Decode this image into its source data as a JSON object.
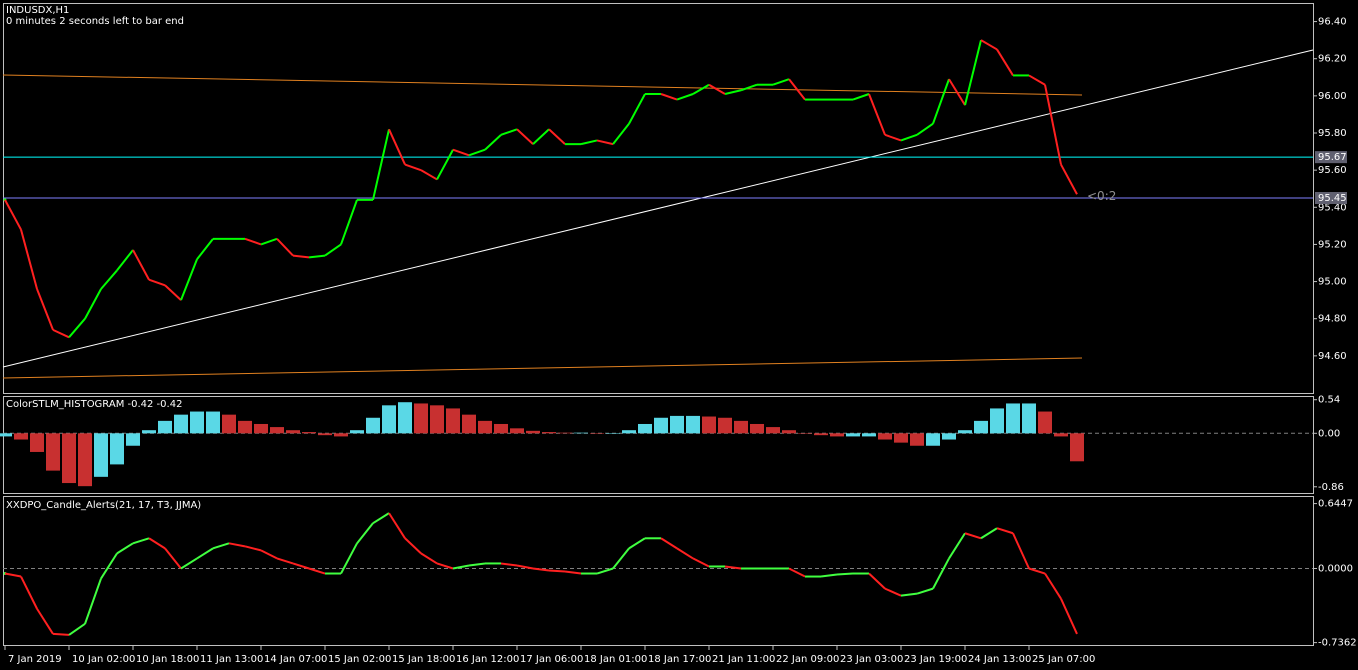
{
  "chart_data": [
    {
      "type": "line",
      "title": "INDUSDX,H1",
      "subtitle": "0 minutes 2 seconds left to bar end",
      "values": [
        95.44,
        95.28,
        94.96,
        94.74,
        94.7,
        94.8,
        94.96,
        95.06,
        95.17,
        95.01,
        94.98,
        94.9,
        95.12,
        95.23,
        95.23,
        95.23,
        95.2,
        95.23,
        95.14,
        95.13,
        95.14,
        95.2,
        95.44,
        95.44,
        95.82,
        95.63,
        95.6,
        95.55,
        95.71,
        95.68,
        95.71,
        95.79,
        95.82,
        95.74,
        95.82,
        95.74,
        95.74,
        95.76,
        95.74,
        95.85,
        96.01,
        96.01,
        95.98,
        96.01,
        96.06,
        96.01,
        96.03,
        96.06,
        96.06,
        96.09,
        95.98,
        95.98,
        95.98,
        95.98,
        96.01,
        95.79,
        95.76,
        95.79,
        95.85,
        96.09,
        95.95,
        96.3,
        96.25,
        96.11,
        96.11,
        96.06,
        95.63,
        95.47
      ],
      "up_color": "#00ff00",
      "down_color": "#ff2020",
      "ylim": [
        94.4,
        96.5
      ],
      "yticks": [
        {
          "value": 94.6,
          "label": "94.60"
        },
        {
          "value": 94.8,
          "label": "94.80"
        },
        {
          "value": 95.0,
          "label": "95.00"
        },
        {
          "value": 95.2,
          "label": "95.20"
        },
        {
          "value": 95.4,
          "label": "95.40"
        },
        {
          "value": 95.6,
          "label": "95.60"
        },
        {
          "value": 95.8,
          "label": "95.80"
        },
        {
          "value": 96.0,
          "label": "96.00"
        },
        {
          "value": 96.2,
          "label": "96.20"
        },
        {
          "value": 96.4,
          "label": "96.40"
        }
      ],
      "price_lines": [
        95.67,
        95.45
      ],
      "price_line_colors": [
        "#00ffff",
        "#8080ff"
      ],
      "annotation": "<0:2"
    },
    {
      "type": "histogram",
      "title": "ColorSTLM_HISTOGRAM -0.42 -0.42",
      "values": [
        -0.05,
        -0.1,
        -0.3,
        -0.6,
        -0.8,
        -0.85,
        -0.7,
        -0.5,
        -0.2,
        0.05,
        0.2,
        0.3,
        0.35,
        0.35,
        0.3,
        0.2,
        0.15,
        0.1,
        0.05,
        0.02,
        -0.03,
        -0.05,
        0.05,
        0.25,
        0.45,
        0.5,
        0.48,
        0.45,
        0.4,
        0.3,
        0.2,
        0.15,
        0.08,
        0.04,
        0.02,
        0.01,
        0.01,
        0.0,
        0.0,
        0.05,
        0.15,
        0.25,
        0.28,
        0.28,
        0.27,
        0.25,
        0.2,
        0.15,
        0.1,
        0.05,
        0.0,
        -0.03,
        -0.05,
        -0.05,
        -0.05,
        -0.1,
        -0.15,
        -0.2,
        -0.2,
        -0.1,
        0.05,
        0.2,
        0.4,
        0.48,
        0.48,
        0.35,
        -0.05,
        -0.45
      ],
      "up_color": "#5ad8e6",
      "down_color": "#c83030",
      "ylim": [
        -0.96,
        0.6
      ],
      "yticks": [
        -0.86,
        {
          "value": 0,
          "label": "0.00"
        },
        0.54
      ],
      "zero_line": true
    },
    {
      "type": "line",
      "title": "XXDPO_Candle_Alerts(21, 17, T3, JJMA)",
      "categories": [
        "7 Jan 2019",
        null,
        null,
        null,
        "10 Jan 02:00",
        null,
        null,
        null,
        "10 Jan 18:00",
        null,
        null,
        null,
        "11 Jan 13:00",
        null,
        null,
        null,
        "14 Jan 07:00",
        null,
        null,
        null,
        "15 Jan 02:00",
        null,
        null,
        null,
        "15 Jan 18:00",
        null,
        null,
        null,
        "16 Jan 12:00",
        null,
        null,
        null,
        "17 Jan 06:00",
        null,
        null,
        null,
        "18 Jan 01:00",
        null,
        null,
        null,
        "18 Jan 17:00",
        null,
        null,
        null,
        "21 Jan 11:00",
        null,
        null,
        null,
        "22 Jan 09:00",
        null,
        null,
        null,
        "23 Jan 03:00",
        null,
        null,
        null,
        "23 Jan 19:00",
        null,
        null,
        null,
        "24 Jan 13:00",
        null,
        null,
        null,
        "25 Jan 07:00",
        null,
        null,
        null
      ],
      "values": [
        -0.05,
        -0.08,
        -0.4,
        -0.65,
        -0.66,
        -0.55,
        -0.1,
        0.15,
        0.25,
        0.3,
        0.2,
        0.0,
        0.1,
        0.2,
        0.25,
        0.22,
        0.18,
        0.1,
        0.05,
        0.0,
        -0.05,
        -0.05,
        0.25,
        0.45,
        0.55,
        0.3,
        0.15,
        0.05,
        0.0,
        0.03,
        0.05,
        0.05,
        0.03,
        0.0,
        -0.02,
        -0.03,
        -0.05,
        -0.05,
        0.0,
        0.2,
        0.3,
        0.3,
        0.2,
        0.1,
        0.02,
        0.02,
        0.0,
        0.0,
        0.0,
        0.0,
        -0.08,
        -0.08,
        -0.06,
        -0.05,
        -0.05,
        -0.2,
        -0.27,
        -0.25,
        -0.2,
        0.1,
        0.35,
        0.3,
        0.4,
        0.35,
        0.0,
        -0.05,
        -0.3,
        -0.65
      ],
      "up_color": "#40ff40",
      "down_color": "#ff2020",
      "ylim": [
        -0.76,
        0.72
      ],
      "yticks": [
        -0.7362,
        {
          "value": 0,
          "label": "0.0000"
        },
        0.6447
      ],
      "zero_line": true
    }
  ]
}
